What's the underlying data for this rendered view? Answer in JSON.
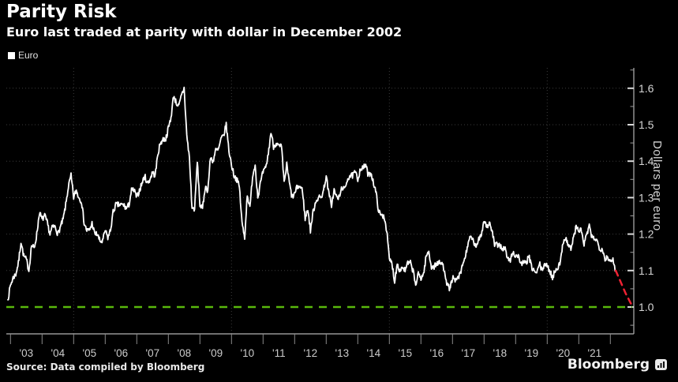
{
  "header": {
    "title": "Parity Risk",
    "subtitle": "Euro last traded at parity with dollar in December 2002"
  },
  "legend": {
    "items": [
      {
        "label": "Euro",
        "color": "#ffffff"
      }
    ]
  },
  "footer": {
    "source": "Source: Data compiled by Bloomberg",
    "brand": "Bloomberg"
  },
  "colors": {
    "background": "#000000",
    "series": "#ffffff",
    "parity_green": "#58b80c",
    "projection_red": "#ee2233",
    "grid": "#3c3c3c",
    "axis": "#b3b3b3",
    "tick_text": "#cccccc"
  },
  "chart_data": {
    "type": "line",
    "title": "Parity Risk",
    "subtitle": "Euro last traded at parity with dollar in December 2002",
    "ylabel": "Dollars per euro",
    "xlabel": "",
    "legend_entries": [
      "Euro"
    ],
    "legend_position": "top-left",
    "grid": "dotted",
    "x_range": [
      2002.92,
      2022.75
    ],
    "ylim": [
      0.925,
      1.655
    ],
    "yticks": [
      1.0,
      1.1,
      1.2,
      1.3,
      1.4,
      1.5,
      1.6
    ],
    "ytick_labels": [
      "1.0",
      "1.1",
      "1.2",
      "1.3",
      "1.4",
      "1.5",
      "1.6"
    ],
    "minor_ytick_step": 0.05,
    "xtick_boundary_years": [
      2003,
      2004,
      2005,
      2006,
      2007,
      2008,
      2009,
      2010,
      2011,
      2012,
      2013,
      2014,
      2015,
      2016,
      2017,
      2018,
      2019,
      2020,
      2021,
      2022
    ],
    "xtick_labels": [
      "'03",
      "'04",
      "'05",
      "'06",
      "'07",
      "'08",
      "'09",
      "'10",
      "'11",
      "'12",
      "'13",
      "'14",
      "'15",
      "'16",
      "'17",
      "'18",
      "'19",
      "'20",
      "'21"
    ],
    "v_gridline_years": [
      2005,
      2010,
      2015,
      2020
    ],
    "parity_line": {
      "value": 1.0,
      "color": "#58b80c",
      "style": "dashed"
    },
    "projection": {
      "name": "parity-risk-projection",
      "color": "#ee2233",
      "style": "dashed",
      "points": [
        [
          2022.17,
          1.1
        ],
        [
          2022.48,
          1.038
        ],
        [
          2022.7,
          1.001
        ]
      ]
    },
    "series": [
      {
        "name": "Euro",
        "color": "#ffffff",
        "start_year": 2002.917,
        "step_years": 0.08333,
        "values": [
          1.02,
          1.06,
          1.08,
          1.09,
          1.12,
          1.18,
          1.14,
          1.13,
          1.1,
          1.17,
          1.16,
          1.2,
          1.26,
          1.24,
          1.25,
          1.23,
          1.2,
          1.22,
          1.22,
          1.2,
          1.22,
          1.24,
          1.28,
          1.33,
          1.36,
          1.3,
          1.32,
          1.3,
          1.29,
          1.23,
          1.21,
          1.21,
          1.23,
          1.2,
          1.2,
          1.18,
          1.18,
          1.21,
          1.19,
          1.21,
          1.26,
          1.28,
          1.28,
          1.28,
          1.28,
          1.27,
          1.28,
          1.32,
          1.32,
          1.3,
          1.32,
          1.34,
          1.36,
          1.34,
          1.35,
          1.37,
          1.36,
          1.42,
          1.45,
          1.46,
          1.46,
          1.49,
          1.52,
          1.58,
          1.56,
          1.55,
          1.58,
          1.6,
          1.47,
          1.41,
          1.27,
          1.27,
          1.4,
          1.28,
          1.27,
          1.33,
          1.32,
          1.41,
          1.4,
          1.43,
          1.43,
          1.46,
          1.47,
          1.5,
          1.43,
          1.39,
          1.36,
          1.35,
          1.33,
          1.23,
          1.19,
          1.31,
          1.27,
          1.36,
          1.39,
          1.3,
          1.34,
          1.37,
          1.38,
          1.42,
          1.48,
          1.44,
          1.45,
          1.44,
          1.44,
          1.34,
          1.39,
          1.34,
          1.3,
          1.31,
          1.33,
          1.33,
          1.32,
          1.24,
          1.27,
          1.21,
          1.26,
          1.29,
          1.3,
          1.3,
          1.32,
          1.36,
          1.31,
          1.28,
          1.32,
          1.3,
          1.3,
          1.33,
          1.32,
          1.35,
          1.36,
          1.36,
          1.37,
          1.35,
          1.38,
          1.38,
          1.39,
          1.36,
          1.37,
          1.34,
          1.31,
          1.26,
          1.25,
          1.25,
          1.21,
          1.13,
          1.12,
          1.07,
          1.12,
          1.1,
          1.11,
          1.1,
          1.12,
          1.12,
          1.1,
          1.06,
          1.09,
          1.08,
          1.09,
          1.14,
          1.15,
          1.11,
          1.11,
          1.12,
          1.12,
          1.12,
          1.1,
          1.06,
          1.05,
          1.08,
          1.07,
          1.08,
          1.09,
          1.12,
          1.14,
          1.18,
          1.19,
          1.18,
          1.16,
          1.19,
          1.2,
          1.24,
          1.22,
          1.23,
          1.21,
          1.17,
          1.17,
          1.17,
          1.16,
          1.16,
          1.13,
          1.13,
          1.15,
          1.14,
          1.14,
          1.12,
          1.12,
          1.12,
          1.14,
          1.11,
          1.1,
          1.09,
          1.12,
          1.1,
          1.12,
          1.11,
          1.1,
          1.08,
          1.1,
          1.11,
          1.12,
          1.18,
          1.19,
          1.17,
          1.16,
          1.19,
          1.22,
          1.21,
          1.21,
          1.17,
          1.2,
          1.22,
          1.19,
          1.19,
          1.18,
          1.16,
          1.16,
          1.13,
          1.14,
          1.12,
          1.13,
          1.1
        ]
      }
    ]
  }
}
